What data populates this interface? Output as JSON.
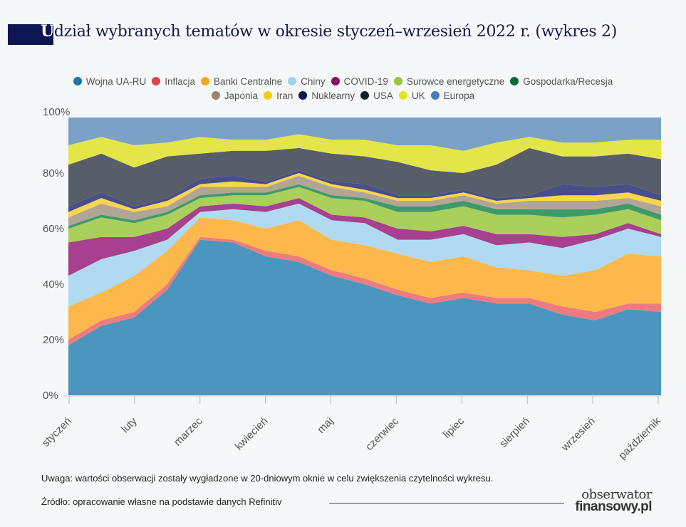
{
  "title": {
    "first_letter": "U",
    "rest": "dział wybranych tematów w okresie styczeń–wrzesień 2022 r. (wykres 2)"
  },
  "footer": {
    "note": "Uwaga: wartości obserwacji zostały wygładzone w 20-dniowym oknie w celu zwiększenia czytelności wykresu.",
    "source": "Źródło: opracowanie własne na podstawie danych Refinitiv",
    "logo_line1": "obserwator",
    "logo_line2": "finansowy.pl"
  },
  "chart_data": {
    "type": "area",
    "stacked": "percent",
    "legend_position": "top-center",
    "grid": false,
    "ylim": [
      0,
      100
    ],
    "y_ticks": [
      "0%",
      "20%",
      "40%",
      "60%",
      "80%",
      "100%"
    ],
    "x_tick_labels": [
      "styczeń",
      "luty",
      "marzec",
      "kwiecień",
      "maj",
      "czerwiec",
      "lipiec",
      "sierpień",
      "wrzesień",
      "październik"
    ],
    "x": [
      "2022-01-01",
      "2022-01-16",
      "2022-02-01",
      "2022-02-15",
      "2022-03-01",
      "2022-03-16",
      "2022-04-01",
      "2022-04-16",
      "2022-05-01",
      "2022-05-16",
      "2022-06-01",
      "2022-06-16",
      "2022-07-01",
      "2022-07-16",
      "2022-08-01",
      "2022-08-16",
      "2022-09-01",
      "2022-09-16",
      "2022-10-01"
    ],
    "series": [
      {
        "name": "Wojna UA-RU",
        "color": "#4a96be",
        "legend_color": "#1a75a8",
        "values": [
          18,
          25,
          28,
          38,
          56,
          55,
          50,
          48,
          43,
          40,
          36,
          33,
          35,
          33,
          33,
          29,
          27,
          31,
          30
        ]
      },
      {
        "name": "Inflacja",
        "color": "#ee7b80",
        "legend_color": "#e0434c",
        "values": [
          2,
          2,
          2,
          2,
          1,
          1,
          2,
          2,
          2,
          2,
          2,
          2,
          2,
          2,
          2,
          3,
          3,
          2,
          3
        ]
      },
      {
        "name": "Banki Centralne",
        "color": "#fdb84c",
        "legend_color": "#fba817",
        "values": [
          12,
          10,
          13,
          12,
          7,
          7,
          8,
          13,
          11,
          12,
          13,
          13,
          13,
          11,
          10,
          11,
          15,
          18,
          17
        ]
      },
      {
        "name": "Chiny",
        "color": "#afdaf2",
        "legend_color": "#9fd3ef",
        "values": [
          11,
          12,
          9,
          4,
          2,
          4,
          6,
          6,
          7,
          8,
          5,
          8,
          8,
          8,
          10,
          10,
          11,
          9,
          7
        ]
      },
      {
        "name": "COVID-19",
        "color": "#a6408f",
        "legend_color": "#8e0b63",
        "values": [
          12,
          8,
          5,
          4,
          2,
          2,
          2,
          2,
          2,
          2,
          4,
          3,
          3,
          4,
          3,
          4,
          2,
          2,
          1
        ]
      },
      {
        "name": "Surowce energetyczne",
        "color": "#aacf5a",
        "legend_color": "#9ac43a",
        "values": [
          5,
          7,
          5,
          5,
          3,
          3,
          4,
          4,
          6,
          6,
          6,
          7,
          7,
          7,
          7,
          7,
          7,
          5,
          5
        ]
      },
      {
        "name": "Gospodarka/Recesja",
        "color": "#3f9a6a",
        "legend_color": "#0a6b3b",
        "values": [
          1,
          1,
          1,
          1,
          1,
          1,
          1,
          1,
          1,
          1,
          2,
          2,
          2,
          2,
          2,
          3,
          2,
          2,
          2
        ]
      },
      {
        "name": "Japonia",
        "color": "#b2a596",
        "legend_color": "#9c8570",
        "values": [
          3,
          4,
          3,
          2,
          3,
          2,
          2,
          3,
          3,
          2,
          2,
          2,
          2,
          2,
          3,
          3,
          3,
          2,
          3
        ]
      },
      {
        "name": "Iran",
        "color": "#fbd54a",
        "legend_color": "#fbc918",
        "values": [
          2,
          2,
          1,
          2,
          1,
          2,
          1,
          1,
          1,
          1,
          1,
          1,
          1,
          1,
          1,
          2,
          2,
          2,
          2
        ]
      },
      {
        "name": "Nuklearny",
        "color": "#474f8a",
        "legend_color": "#0c1650",
        "values": [
          2,
          2,
          1,
          1,
          2,
          2,
          1,
          1,
          1,
          2,
          1,
          1,
          1,
          1,
          1,
          4,
          3,
          3,
          2
        ]
      },
      {
        "name": "USA",
        "color": "#575e6a",
        "legend_color": "#141d2b",
        "values": [
          15,
          14,
          14,
          15,
          9,
          9,
          11,
          8,
          10,
          10,
          12,
          9,
          6,
          12,
          17,
          10,
          11,
          11,
          13
        ]
      },
      {
        "name": "UK",
        "color": "#e4e549",
        "legend_color": "#e3e31f",
        "values": [
          7,
          6,
          8,
          5,
          6,
          4,
          4,
          5,
          5,
          6,
          6,
          9,
          8,
          8,
          4,
          5,
          5,
          5,
          7
        ]
      },
      {
        "name": "Europa",
        "color": "#7ba1c6",
        "legend_color": "#4a7fb8",
        "values": [
          10,
          7,
          10,
          9,
          7,
          8,
          8,
          6,
          8,
          8,
          10,
          10,
          12,
          9,
          7,
          9,
          9,
          8,
          8
        ]
      }
    ]
  }
}
